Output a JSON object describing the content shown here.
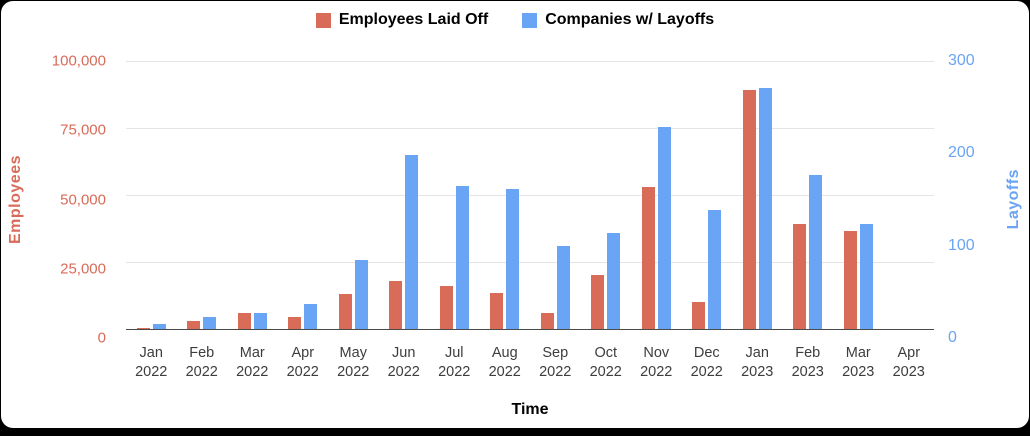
{
  "legend": [
    {
      "label": "Employees Laid Off",
      "color": "#d96b59"
    },
    {
      "label": "Companies w/ Layoffs",
      "color": "#6aa4f4"
    }
  ],
  "colors": {
    "employees_series": "#d96b59",
    "companies_series": "#6aa4f4",
    "x_tick_text": "#3d3d3d",
    "gridline": "#e4e4e4",
    "axis_line": "#4a4a4a"
  },
  "chart_data": {
    "type": "bar",
    "title": "",
    "xlabel": "Time",
    "categories": [
      "Jan 2022",
      "Feb 2022",
      "Mar 2022",
      "Apr 2022",
      "May 2022",
      "Jun 2022",
      "Jul 2022",
      "Aug 2022",
      "Sep 2022",
      "Oct 2022",
      "Nov 2022",
      "Dec 2022",
      "Jan 2023",
      "Feb 2023",
      "Mar 2023",
      "Apr 2023"
    ],
    "series": [
      {
        "name": "Employees Laid Off",
        "axis": "left",
        "color": "#d96b59",
        "values": [
          400,
          2900,
          5800,
          4300,
          12900,
          18000,
          16200,
          13300,
          6100,
          20000,
          53000,
          10000,
          89000,
          39000,
          36500,
          0
        ]
      },
      {
        "name": "Companies w/ Layoffs",
        "axis": "right",
        "color": "#6aa4f4",
        "values": [
          6,
          13,
          18,
          28,
          77,
          195,
          160,
          157,
          93,
          108,
          226,
          133,
          270,
          172,
          117,
          0
        ]
      }
    ],
    "left_axis": {
      "label": "Employees",
      "color": "#d96b59",
      "max": 100000,
      "min": 0,
      "ticks": [
        "100,000",
        "75,000",
        "50,000",
        "25,000",
        "0"
      ]
    },
    "right_axis": {
      "label": "Layoffs",
      "color": "#6aa4f4",
      "max": 300,
      "min": 0,
      "ticks": [
        "300",
        "200",
        "100",
        "0"
      ]
    },
    "grid": true,
    "legend_position": "top"
  }
}
